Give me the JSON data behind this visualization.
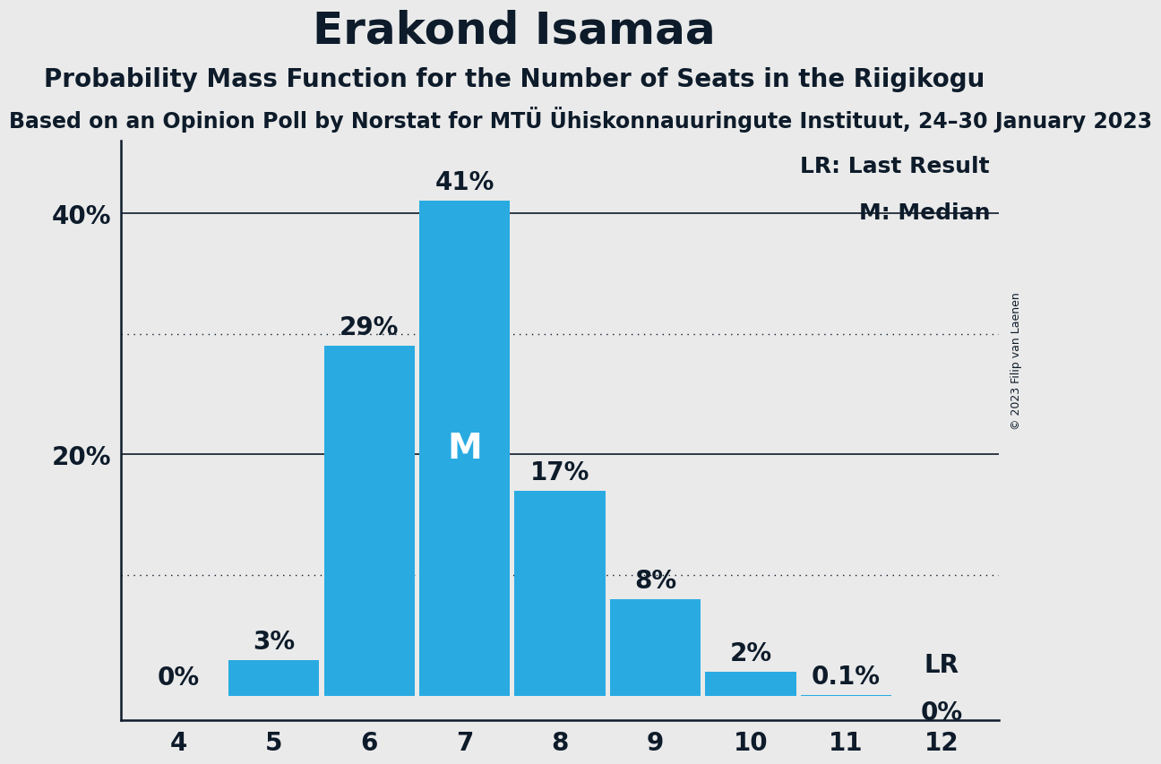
{
  "title": "Erakond Isamaa",
  "subtitle1": "Probability Mass Function for the Number of Seats in the Riigikogu",
  "subtitle2": "Based on an Opinion Poll by Norstat for MTÜ Ühiskonnauuringute Instituut, 24–30 January 2023",
  "subtitle2_display": "sed on an Opinion Poll by Norstat for MTÜ Ühiskonnauuringute Instituut, 24–30 January 20",
  "copyright": "© 2023 Filip van Laenen",
  "categories": [
    4,
    5,
    6,
    7,
    8,
    9,
    10,
    11,
    12
  ],
  "values": [
    0.0,
    3.0,
    29.0,
    41.0,
    17.0,
    8.0,
    2.0,
    0.1,
    0.0
  ],
  "labels": [
    "0%",
    "3%",
    "29%",
    "41%",
    "17%",
    "8%",
    "2%",
    "0.1%",
    "0%"
  ],
  "bar_color": "#29ABE2",
  "median_bar": 7,
  "median_label": "M",
  "lr_bar": 12,
  "lr_label": "LR",
  "background_color": "#EAEAEA",
  "axis_color": "#0D1B2A",
  "yticks": [
    0,
    20,
    40
  ],
  "ytick_labels": [
    "",
    "20%",
    "40%"
  ],
  "solid_gridlines": [
    20,
    40
  ],
  "dotted_gridlines": [
    10,
    30
  ],
  "legend_lr": "LR: Last Result",
  "legend_m": "M: Median",
  "title_fontsize": 36,
  "subtitle1_fontsize": 20,
  "subtitle2_fontsize": 17,
  "tick_fontsize": 20,
  "legend_fontsize": 18,
  "bar_label_fontsize": 20,
  "median_fontsize": 28
}
